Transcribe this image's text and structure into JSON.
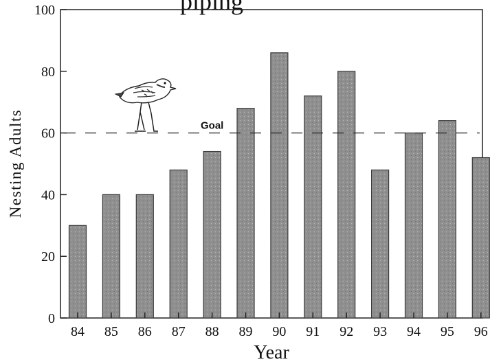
{
  "chart_data": {
    "type": "bar",
    "title": "",
    "visible_title_fragment": "piping",
    "xlabel": "Year",
    "ylabel": "Nesting Adults",
    "categories": [
      "84",
      "85",
      "86",
      "87",
      "88",
      "89",
      "90",
      "91",
      "92",
      "93",
      "94",
      "95",
      "96"
    ],
    "values": [
      30,
      40,
      40,
      48,
      54,
      68,
      86,
      72,
      80,
      48,
      60,
      64,
      52
    ],
    "ylim": [
      0,
      100
    ],
    "yticks": [
      0,
      20,
      40,
      60,
      80,
      100
    ],
    "grid": false,
    "legend": "none",
    "bar_color": "#8e8e8e",
    "annotations": [
      {
        "label": "Goal",
        "value": 60,
        "style": "dashed",
        "icon": "plover-bird-icon"
      }
    ]
  }
}
